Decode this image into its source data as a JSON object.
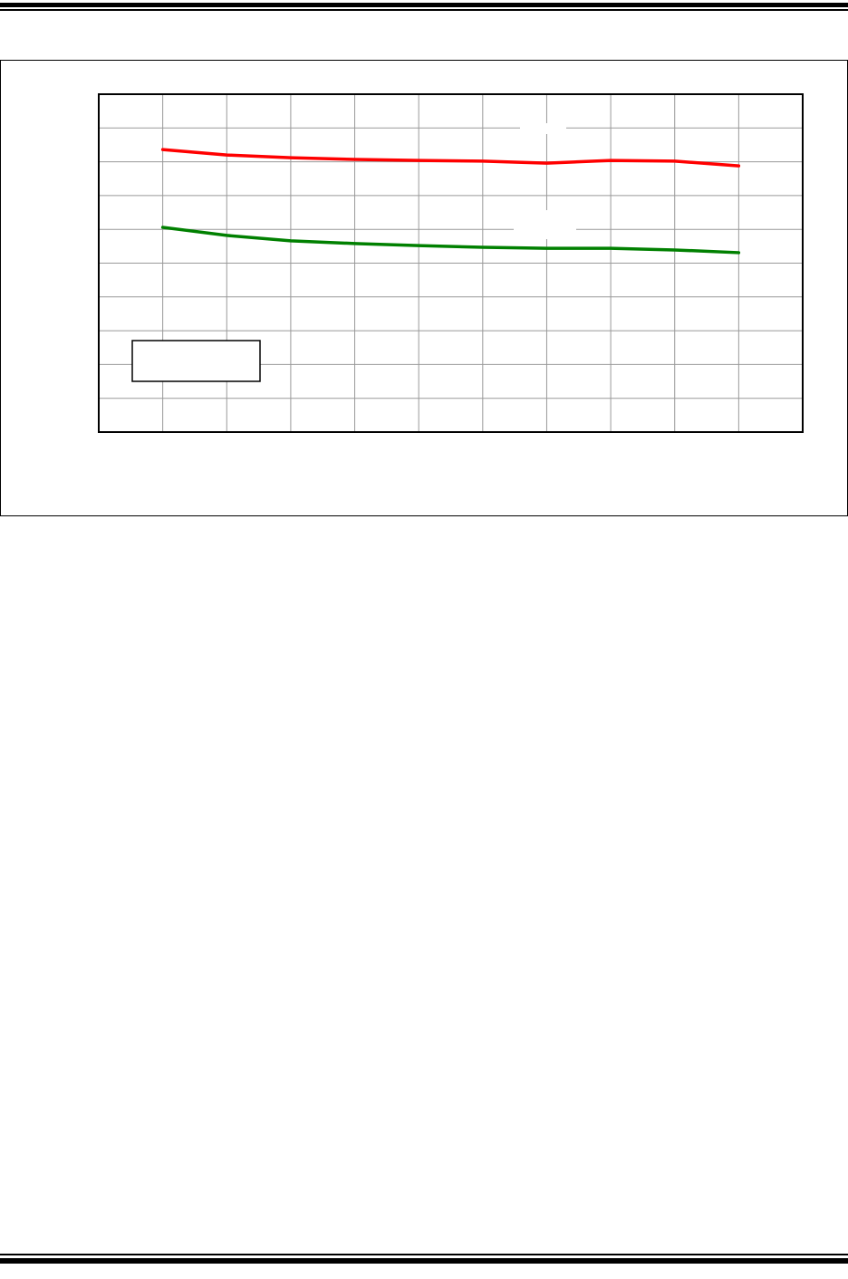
{
  "chart_data": {
    "type": "line",
    "title": "",
    "xlabel": "",
    "ylabel": "",
    "xlim": [
      0,
      11
    ],
    "ylim": [
      0,
      10
    ],
    "grid": true,
    "x": [
      1,
      2,
      3,
      4,
      5,
      6,
      7,
      8,
      9,
      10
    ],
    "series": [
      {
        "color": "#ff0000",
        "values": [
          8.36,
          8.2,
          8.12,
          8.07,
          8.04,
          8.02,
          7.96,
          8.04,
          8.02,
          7.88
        ]
      },
      {
        "color": "#008000",
        "values": [
          6.06,
          5.82,
          5.66,
          5.58,
          5.52,
          5.47,
          5.44,
          5.44,
          5.39,
          5.31
        ]
      }
    ],
    "legend": "bottom-left"
  }
}
